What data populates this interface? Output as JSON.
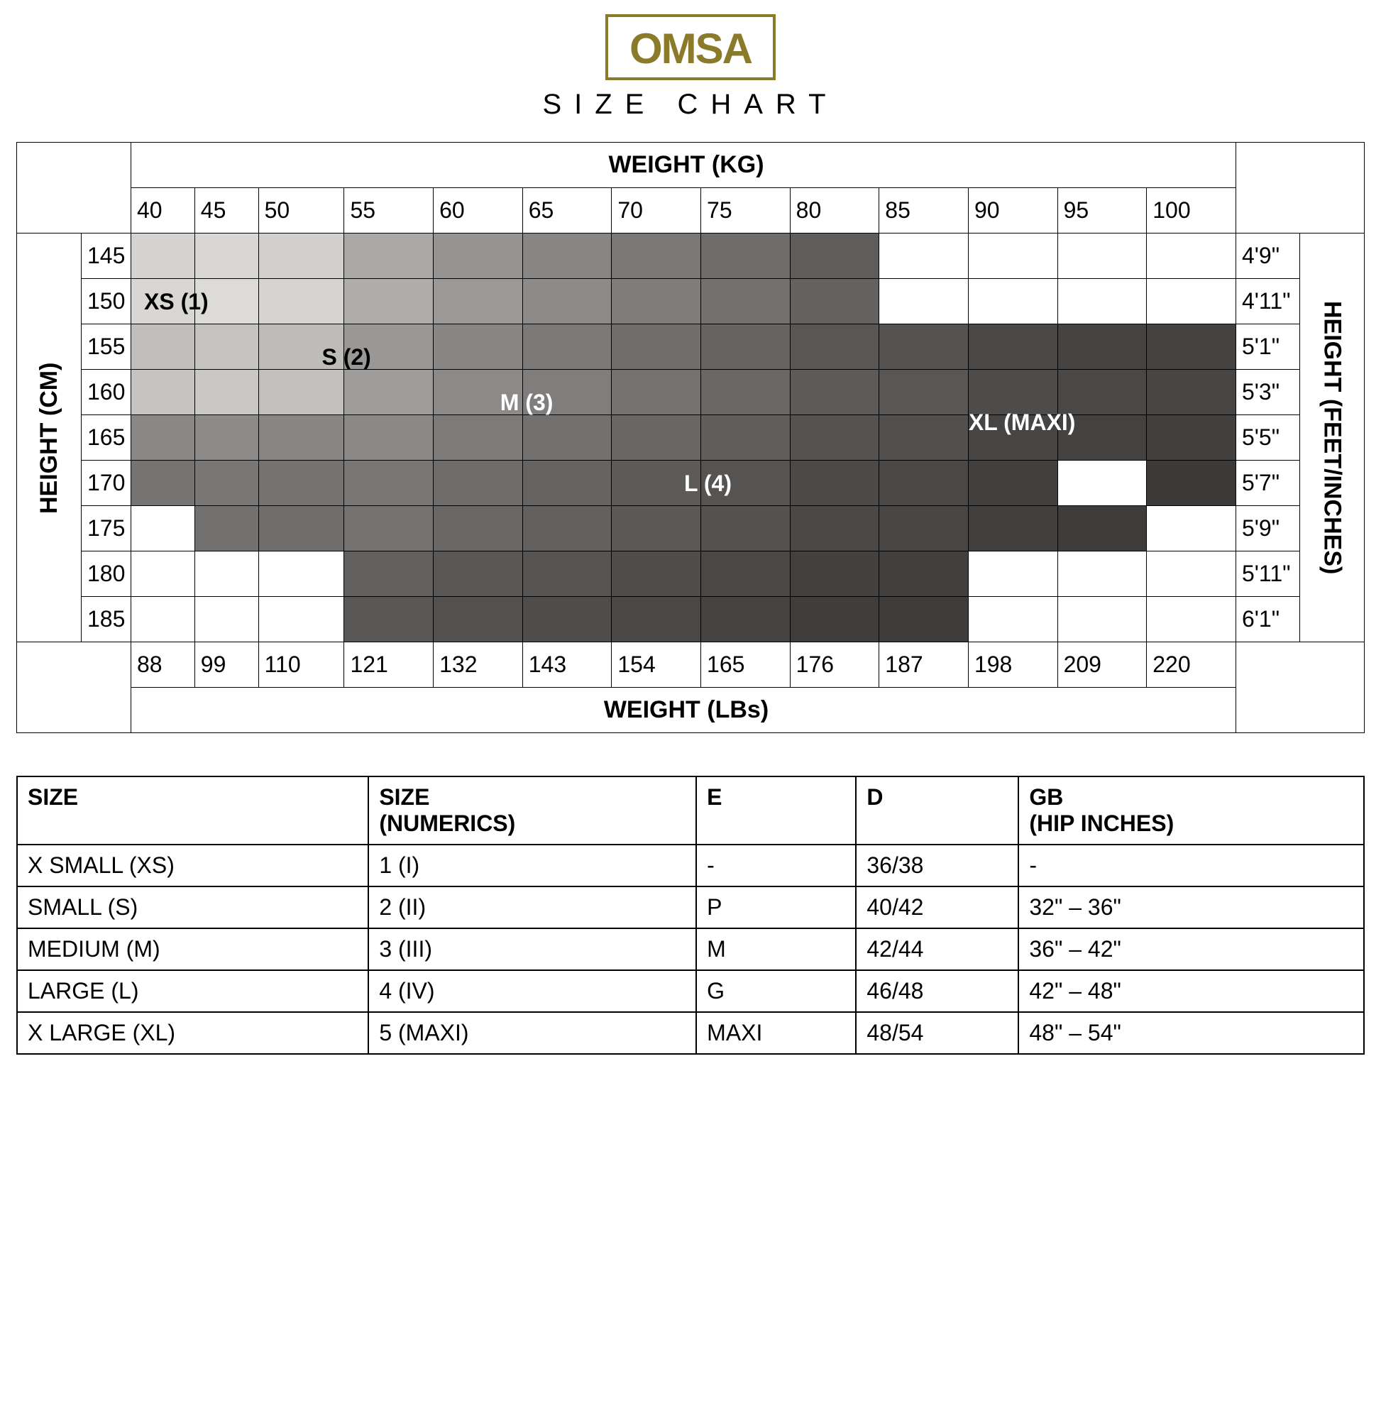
{
  "logo": {
    "text": "OMSA",
    "border_color": "#8a7a2a",
    "text_color": "#8a7a2a"
  },
  "subtitle": "SIZE CHART",
  "chart": {
    "weight_kg_label": "WEIGHT (KG)",
    "weight_lbs_label": "WEIGHT (LBs)",
    "height_cm_label": "HEIGHT (CM)",
    "height_ft_label": "HEIGHT (FEET/INCHES)",
    "weights_kg": [
      "40",
      "45",
      "50",
      "55",
      "60",
      "65",
      "70",
      "75",
      "80",
      "85",
      "90",
      "95",
      "100"
    ],
    "weights_lbs": [
      "88",
      "99",
      "110",
      "121",
      "132",
      "143",
      "154",
      "165",
      "176",
      "187",
      "198",
      "209",
      "220"
    ],
    "heights_cm": [
      "145",
      "150",
      "155",
      "160",
      "165",
      "170",
      "175",
      "180",
      "185"
    ],
    "heights_ft": [
      "4'9\"",
      "4'11\"",
      "5'1\"",
      "5'3\"",
      "5'5\"",
      "5'7\"",
      "5'9\"",
      "5'11\"",
      "6'1\""
    ],
    "size_labels": {
      "xs": "XS (1)",
      "s": "S (2)",
      "m": "M (3)",
      "l": "L (4)",
      "xl": "XL (MAXI)"
    },
    "size_label_colors": {
      "xs": "#000",
      "s": "#000",
      "m": "#fff",
      "l": "#fff",
      "xl": "#fff"
    },
    "cell_colors": [
      [
        "#d5d3d0",
        "#d9d7d4",
        "#d2d0cd",
        "#aaa8a6",
        "#969492",
        "#888684",
        "#7a7876",
        "#6e6c6a",
        "#5f5d5b",
        "",
        "",
        "",
        ""
      ],
      [
        "#d9d7d4",
        "#dddbd8",
        "#d6d4d1",
        "#afadab",
        "#9b9997",
        "#8d8b89",
        "#7f7d7b",
        "#73716f",
        "#646260",
        "",
        "",
        "",
        ""
      ],
      [
        "#c1bfbc",
        "#c5c3c0",
        "#bebcb9",
        "#9a9896",
        "#888684",
        "#7c7a78",
        "#706e6c",
        "#666462",
        "#595755",
        "#555351",
        "#4a4846",
        "#464442",
        "#444240"
      ],
      [
        "#c6c4c1",
        "#cac8c5",
        "#c2c0bd",
        "#9e9c9a",
        "#8c8a88",
        "#807e7c",
        "#747270",
        "#6a6866",
        "#5d5b59",
        "#595755",
        "#4e4c4a",
        "#4a4846",
        "#484644"
      ],
      [
        "#8a8886",
        "#8d8b89",
        "#888684",
        "#8b8987",
        "#7d7b79",
        "#73716f",
        "#696765",
        "#605e5c",
        "#555351",
        "#52504e",
        "#474543",
        "#444240",
        "#42403e"
      ],
      [
        "#767472",
        "#797775",
        "#757371",
        "#797775",
        "#6e6c6a",
        "#666462",
        "#5d5b59",
        "#565452",
        "#4c4a48",
        "#4a4846",
        "#42403e",
        "",
        "#3c3a38"
      ],
      [
        "",
        "#73716f",
        "#706e6c",
        "#757371",
        "#6a6866",
        "#636160",
        "#5b5957",
        "#545250",
        "#4b4947",
        "#494745",
        "#42403e",
        "#3f3d3b",
        ""
      ],
      [
        "",
        "",
        "",
        "#62605e",
        "#5a5856",
        "#565452",
        "#4f4d4b",
        "#4a4846",
        "#434140",
        "#42403e",
        "",
        "",
        ""
      ],
      [
        "",
        "",
        "",
        "#5a5856",
        "#53514f",
        "#4f4d4b",
        "#4a4846",
        "#464442",
        "#403e3c",
        "#3f3d3b",
        "",
        "",
        ""
      ]
    ]
  },
  "conv": {
    "headers": [
      "SIZE",
      "SIZE\n(NUMERICS)",
      "E",
      "D",
      "GB\n(HIP INCHES)"
    ],
    "rows": [
      [
        "X SMALL (XS)",
        "1 (I)",
        "-",
        "36/38",
        "-"
      ],
      [
        "SMALL (S)",
        "2 (II)",
        "P",
        "40/42",
        "32\" – 36\""
      ],
      [
        "MEDIUM (M)",
        "3 (III)",
        "M",
        "42/44",
        "36\" – 42\""
      ],
      [
        "LARGE (L)",
        "4 (IV)",
        "G",
        "46/48",
        "42\" – 48\""
      ],
      [
        "X LARGE (XL)",
        "5 (MAXI)",
        "MAXI",
        "48/54",
        "48\" – 54\""
      ]
    ]
  }
}
